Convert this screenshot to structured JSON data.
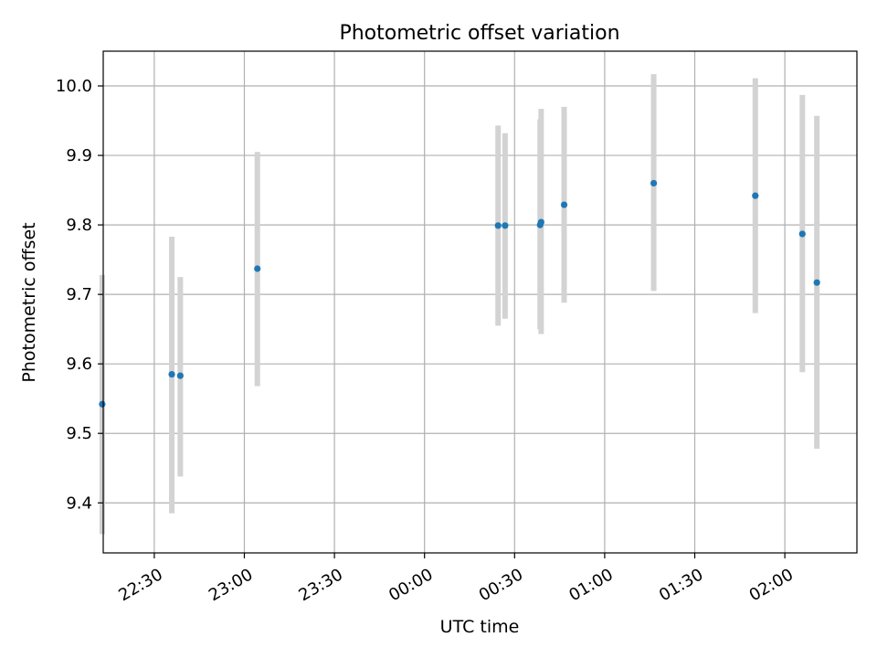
{
  "chart_data": {
    "type": "scatter",
    "title": "Photometric offset variation",
    "xlabel": "UTC time",
    "ylabel": "Photometric offset",
    "x_axis_kind": "time",
    "xlim": [
      "22:13",
      "02:24"
    ],
    "ylim": [
      9.328,
      10.05
    ],
    "grid": true,
    "x_ticks": [
      "22:30",
      "23:00",
      "23:30",
      "00:00",
      "00:30",
      "01:00",
      "01:30",
      "02:00"
    ],
    "y_ticks": [
      9.4,
      9.5,
      9.6,
      9.7,
      9.8,
      9.9,
      10.0
    ],
    "y_tick_labels": [
      "9.4",
      "9.5",
      "9.6",
      "9.7",
      "9.8",
      "9.9",
      "10.0"
    ],
    "series": [
      {
        "marker_color": "#1f77b4",
        "errorbar_color": "#d3d3d3",
        "points": [
          {
            "x": "22:12:40",
            "y": 9.542,
            "ylow": 9.355,
            "yhigh": 9.728
          },
          {
            "x": "22:35:50",
            "y": 9.585,
            "ylow": 9.385,
            "yhigh": 9.783
          },
          {
            "x": "22:38:40",
            "y": 9.583,
            "ylow": 9.438,
            "yhigh": 9.725
          },
          {
            "x": "23:04:20",
            "y": 9.737,
            "ylow": 9.568,
            "yhigh": 9.905
          },
          {
            "x": "00:24:30",
            "y": 9.799,
            "ylow": 9.655,
            "yhigh": 9.943
          },
          {
            "x": "00:26:50",
            "y": 9.799,
            "ylow": 9.665,
            "yhigh": 9.932
          },
          {
            "x": "00:38:30",
            "y": 9.8,
            "ylow": 9.65,
            "yhigh": 9.952
          },
          {
            "x": "00:38:50",
            "y": 9.804,
            "ylow": 9.643,
            "yhigh": 9.967
          },
          {
            "x": "00:46:30",
            "y": 9.829,
            "ylow": 9.688,
            "yhigh": 9.97
          },
          {
            "x": "01:16:20",
            "y": 9.86,
            "ylow": 9.705,
            "yhigh": 10.017
          },
          {
            "x": "01:50:10",
            "y": 9.842,
            "ylow": 9.673,
            "yhigh": 10.011
          },
          {
            "x": "02:05:50",
            "y": 9.787,
            "ylow": 9.588,
            "yhigh": 9.987
          },
          {
            "x": "02:10:40",
            "y": 9.717,
            "ylow": 9.478,
            "yhigh": 9.957
          }
        ]
      }
    ]
  }
}
